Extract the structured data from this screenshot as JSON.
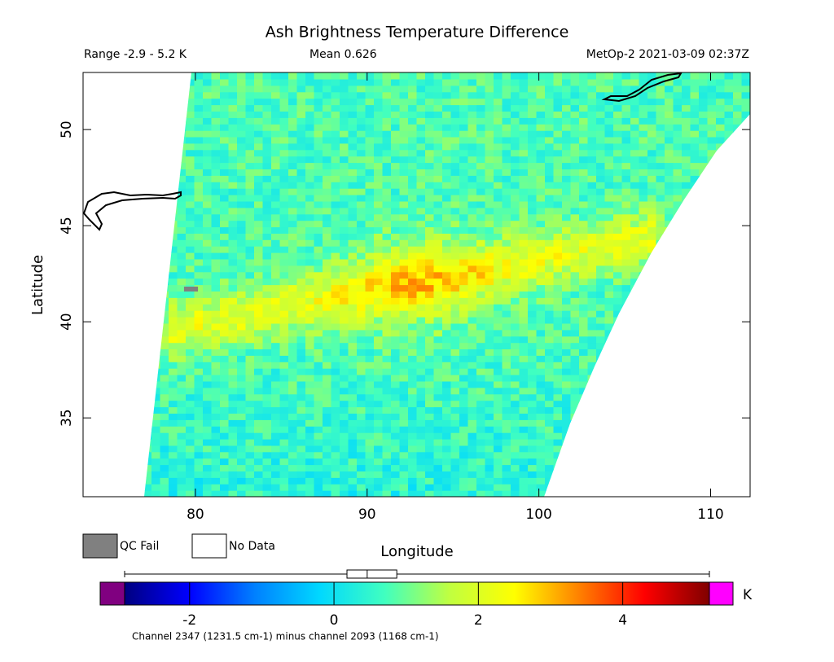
{
  "title": "Ash Brightness Temperature Difference",
  "range_label": "Range -2.9 - 5.2 K",
  "mean_label": "Mean 0.626",
  "source_label": "MetOp-2 2021-03-09 02:37Z",
  "map": {
    "xlim": [
      73.46,
      112.3
    ],
    "ylim": [
      30.9,
      52.97
    ],
    "xticks": [
      80,
      90,
      100,
      110
    ],
    "yticks": [
      35,
      40,
      45,
      50
    ],
    "xlabel": "Longitude",
    "ylabel": "Latitude"
  },
  "legend": [
    {
      "label": "QC Fail",
      "color": "#808080"
    },
    {
      "label": "No Data",
      "color": "#ffffff"
    }
  ],
  "colorbar": {
    "lim": [
      -2.9,
      5.2
    ],
    "ticks": [
      -2,
      0,
      2,
      4
    ],
    "unit": "K",
    "below_color": "#800080",
    "above_color": "#ff00ff",
    "colors": [
      "#000080",
      "#0000ff",
      "#0080ff",
      "#00d8ff",
      "#40ffc0",
      "#c0ff40",
      "#ffff00",
      "#ff8000",
      "#ff0000",
      "#800000"
    ],
    "boxplot": {
      "min": -2.9,
      "q1": 0.18,
      "median": 0.46,
      "q3": 0.87,
      "max": 5.2
    }
  },
  "caption": "Channel 2347 (1231.5 cm-1) minus channel 2093 (1168 cm-1)"
}
